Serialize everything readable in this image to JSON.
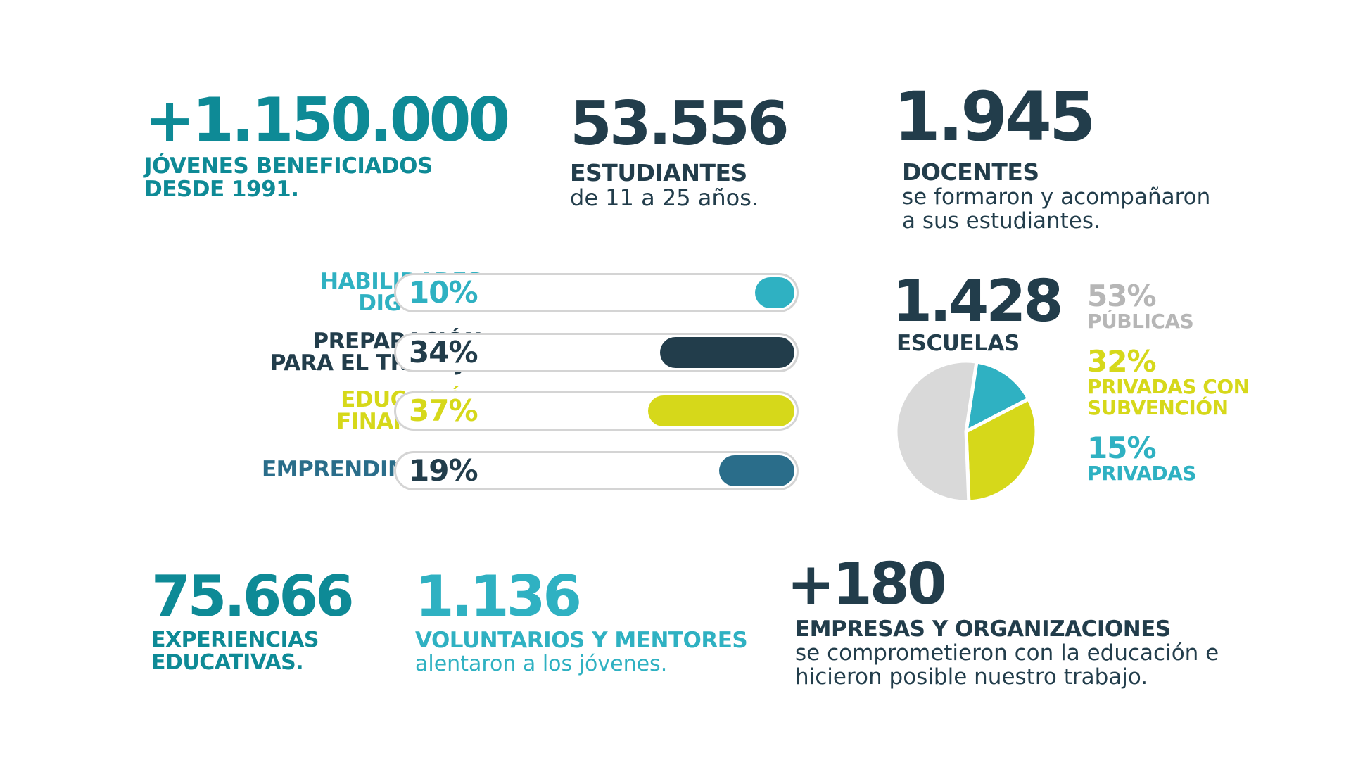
{
  "stats": {
    "jovenes": {
      "number": "+1.150.000",
      "line1": "JÓVENES BENEFICIADOS",
      "line2": "DESDE 1991."
    },
    "estudiantes": {
      "number": "53.556",
      "caption": "ESTUDIANTES",
      "sub": "de 11 a 25 años."
    },
    "docentes": {
      "number": "1.945",
      "caption": "DOCENTES",
      "sub1": "se formaron y acompañaron",
      "sub2": "a sus estudiantes."
    },
    "experiencias": {
      "number": "75.666",
      "line1": "EXPERIENCIAS",
      "line2": "EDUCATIVAS."
    },
    "voluntarios": {
      "number": "1.136",
      "caption": "VOLUNTARIOS Y MENTORES",
      "sub": "alentaron a los jóvenes."
    },
    "empresas": {
      "number": "+180",
      "caption": "EMPRESAS Y ORGANIZACIONES",
      "sub1": "se comprometieron con la educación e",
      "sub2": "hicieron posible nuestro trabajo."
    }
  },
  "programs": [
    {
      "line1": "HABILIDADES",
      "line2": "DIGITALES",
      "pct_label": "10%",
      "value": 10,
      "color": "#2fb1c2"
    },
    {
      "line1": "PREPARACIÓN",
      "line2": "PARA EL TRABAJO",
      "pct_label": "34%",
      "value": 34,
      "color": "#223d4b"
    },
    {
      "line1": "EDUCACIÓN",
      "line2": "FINANCIERA",
      "pct_label": "37%",
      "value": 37,
      "color": "#d6d81a"
    },
    {
      "line1": "",
      "line2": "EMPRENDIMIENTO",
      "pct_label": "19%",
      "value": 19,
      "color": "#2a6d8a"
    }
  ],
  "escuelas": {
    "number": "1.428",
    "caption": "ESCUELAS"
  },
  "chart_data": {
    "type": "pie",
    "slices": [
      {
        "label_pct": "53%",
        "label": "PÚBLICAS",
        "value": 53,
        "color": "#d9d9d9"
      },
      {
        "label_pct": "32%",
        "label_line1": "PRIVADAS CON",
        "label_line2": "SUBVENCIÓN",
        "value": 32,
        "color": "#d6d81a"
      },
      {
        "label_pct": "15%",
        "label": "PRIVADAS",
        "value": 15,
        "color": "#2fb1c2"
      }
    ]
  }
}
